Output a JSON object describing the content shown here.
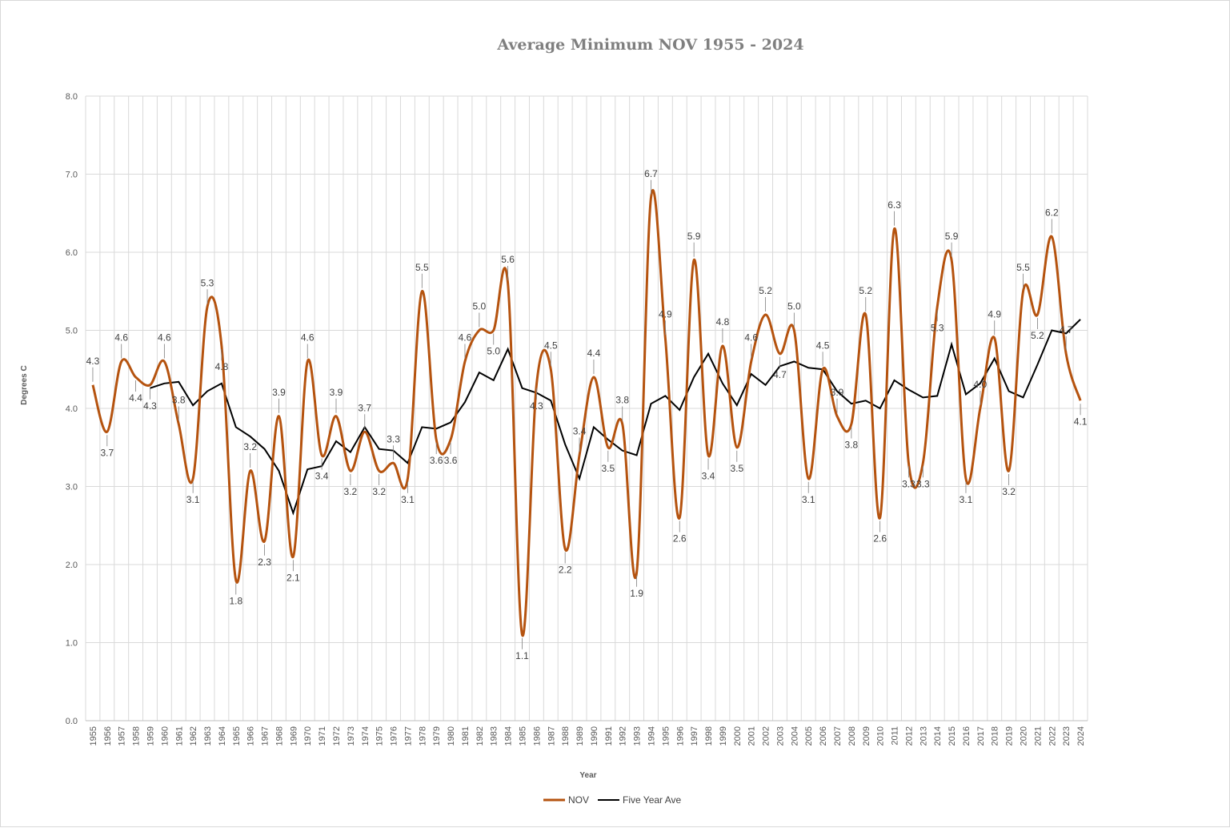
{
  "chart_data": {
    "type": "line",
    "title": "Average Minimum NOV 1955 - 2024",
    "xlabel": "Year",
    "ylabel": "Degrees C",
    "ylim": [
      0,
      8
    ],
    "yticks": [
      "0.0",
      "1.0",
      "2.0",
      "3.0",
      "4.0",
      "5.0",
      "6.0",
      "7.0",
      "8.0"
    ],
    "grid": true,
    "legend_position": "bottom",
    "colors": {
      "NOV": "#b5530f",
      "Five Year Ave": "#000000",
      "grid": "#d9d9d9",
      "axis": "#bfbfbf"
    },
    "x": [
      "1955",
      "1956",
      "1957",
      "1958",
      "1959",
      "1960",
      "1961",
      "1962",
      "1963",
      "1964",
      "1965",
      "1966",
      "1967",
      "1968",
      "1969",
      "1970",
      "1971",
      "1972",
      "1973",
      "1974",
      "1975",
      "1976",
      "1977",
      "1978",
      "1979",
      "1980",
      "1981",
      "1982",
      "1983",
      "1984",
      "1985",
      "1986",
      "1987",
      "1988",
      "1989",
      "1990",
      "1991",
      "1992",
      "1993",
      "1994",
      "1995",
      "1996",
      "1997",
      "1998",
      "1999",
      "2000",
      "2001",
      "2002",
      "2003",
      "2004",
      "2005",
      "2006",
      "2007",
      "2008",
      "2009",
      "2010",
      "2011",
      "2012",
      "2013",
      "2014",
      "2015",
      "2016",
      "2017",
      "2018",
      "2019",
      "2020",
      "2021",
      "2022",
      "2023",
      "2024"
    ],
    "series": [
      {
        "name": "NOV",
        "values": [
          4.3,
          3.7,
          4.6,
          4.4,
          4.3,
          4.6,
          3.8,
          3.1,
          5.3,
          4.8,
          1.8,
          3.2,
          2.3,
          3.9,
          2.1,
          4.6,
          3.4,
          3.9,
          3.2,
          3.7,
          3.2,
          3.3,
          3.1,
          5.5,
          3.6,
          3.6,
          4.6,
          5.0,
          5.0,
          5.6,
          1.1,
          4.3,
          4.5,
          2.2,
          3.4,
          4.4,
          3.5,
          3.8,
          1.9,
          6.7,
          4.9,
          2.6,
          5.9,
          3.4,
          4.8,
          3.5,
          4.6,
          5.2,
          4.7,
          5.0,
          3.1,
          4.5,
          3.9,
          3.8,
          5.2,
          2.6,
          6.3,
          3.3,
          3.3,
          5.3,
          5.9,
          3.1,
          4.0,
          4.9,
          3.2,
          5.5,
          5.2,
          6.2,
          4.7,
          4.1
        ],
        "labels": [
          "4.3",
          "3.7",
          "4.6",
          "4.4",
          "4.3",
          "4.6",
          "3.8",
          "3.1",
          "5.3",
          "4.8",
          "1.8",
          "3.2",
          "2.3",
          "3.9",
          "2.1",
          "4.6",
          "3.4",
          "3.9",
          "3.2",
          "3.7",
          "3.2",
          "3.3",
          "3.1",
          "5.5",
          "3.6",
          "3.6",
          "4.6",
          "5.0",
          "5.0",
          "5.6",
          "1.1",
          "4.3",
          "4.5",
          "2.2",
          "3.4",
          "4.4",
          "3.5",
          "3.8",
          "1.9",
          "6.7",
          "4.9",
          "2.6",
          "5.9",
          "3.4",
          "4.8",
          "3.5",
          "4.6",
          "5.2",
          "4.7",
          "5.0",
          "3.1",
          "4.5",
          "3.9",
          "3.8",
          "5.2",
          "2.6",
          "6.3",
          "3.3",
          "3.3",
          "5.3",
          "5.9",
          "3.1",
          "4.0",
          "4.9",
          "3.2",
          "5.5",
          "5.2",
          "6.2",
          "4.7",
          "4.1"
        ]
      },
      {
        "name": "Five Year Ave",
        "values": [
          null,
          null,
          null,
          null,
          4.26,
          4.32,
          4.34,
          4.04,
          4.22,
          4.32,
          3.76,
          3.64,
          3.48,
          3.2,
          2.66,
          3.22,
          3.26,
          3.58,
          3.44,
          3.76,
          3.48,
          3.46,
          3.3,
          3.76,
          3.74,
          3.82,
          4.08,
          4.46,
          4.36,
          4.76,
          4.26,
          4.2,
          4.1,
          3.54,
          3.1,
          3.76,
          3.6,
          3.46,
          3.4,
          4.06,
          4.16,
          3.98,
          4.4,
          4.7,
          4.32,
          4.04,
          4.44,
          4.3,
          4.54,
          4.6,
          4.52,
          4.5,
          4.22,
          4.06,
          4.1,
          4.0,
          4.36,
          4.24,
          4.14,
          4.16,
          4.82,
          4.18,
          4.32,
          4.64,
          4.22,
          4.14,
          4.56,
          5.0,
          4.96,
          5.14
        ]
      }
    ]
  }
}
